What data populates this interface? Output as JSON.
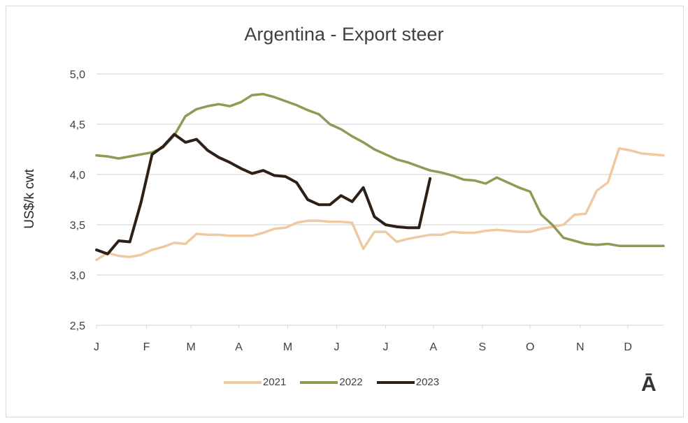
{
  "chart_data": {
    "type": "line",
    "title": "Argentina - Export steer",
    "xlabel": "",
    "ylabel": "US$/k cwt",
    "ylim": [
      2.5,
      5.0
    ],
    "y_ticks": [
      "2,5",
      "3,0",
      "3,5",
      "4,0",
      "4,5",
      "5,0"
    ],
    "y_tick_values": [
      2.5,
      3.0,
      3.5,
      4.0,
      4.5,
      5.0
    ],
    "x_unit": "week of year",
    "xlim": [
      1,
      52
    ],
    "x_tick_labels": [
      "J",
      "F",
      "M",
      "A",
      "M",
      "J",
      "J",
      "A",
      "S",
      "O",
      "N",
      "D"
    ],
    "grid": true,
    "legend_position": "bottom",
    "series": [
      {
        "name": "2021",
        "color": "#f0c9a0",
        "values": [
          3.15,
          3.22,
          3.19,
          3.18,
          3.2,
          3.25,
          3.28,
          3.32,
          3.31,
          3.41,
          3.4,
          3.4,
          3.39,
          3.39,
          3.39,
          3.42,
          3.46,
          3.47,
          3.52,
          3.54,
          3.54,
          3.53,
          3.53,
          3.52,
          3.26,
          3.43,
          3.43,
          3.33,
          3.36,
          3.38,
          3.4,
          3.4,
          3.43,
          3.42,
          3.42,
          3.44,
          3.45,
          3.44,
          3.43,
          3.43,
          3.46,
          3.48,
          3.5,
          3.6,
          3.61,
          3.84,
          3.92,
          4.26,
          4.24,
          4.21,
          4.2,
          4.19
        ]
      },
      {
        "name": "2022",
        "color": "#8f9a55",
        "values": [
          4.19,
          4.18,
          4.16,
          4.18,
          4.2,
          4.22,
          4.27,
          4.39,
          4.58,
          4.65,
          4.68,
          4.7,
          4.68,
          4.72,
          4.79,
          4.8,
          4.77,
          4.73,
          4.69,
          4.64,
          4.6,
          4.5,
          4.45,
          4.38,
          4.32,
          4.25,
          4.2,
          4.15,
          4.12,
          4.08,
          4.04,
          4.02,
          3.99,
          3.95,
          3.94,
          3.91,
          3.97,
          3.92,
          3.87,
          3.83,
          3.6,
          3.5,
          3.37,
          3.34,
          3.31,
          3.3,
          3.31,
          3.29,
          3.29,
          3.29,
          3.29,
          3.29
        ]
      },
      {
        "name": "2023",
        "color": "#2e1f17",
        "values": [
          3.25,
          3.21,
          3.34,
          3.33,
          3.72,
          4.2,
          4.28,
          4.4,
          4.32,
          4.35,
          4.24,
          4.17,
          4.12,
          4.06,
          4.01,
          4.04,
          3.99,
          3.98,
          3.92,
          3.75,
          3.7,
          3.7,
          3.79,
          3.73,
          3.87,
          3.58,
          3.5,
          3.48,
          3.47,
          3.47,
          3.96
        ]
      }
    ]
  },
  "logo": "Ā"
}
